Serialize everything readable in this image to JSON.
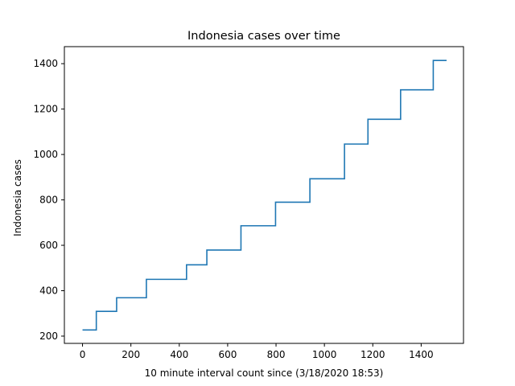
{
  "chart_data": {
    "type": "line",
    "title": "Indonesia cases over time",
    "xlabel": "10 minute interval count since (3/18/2020 18:53)",
    "ylabel": "Indonesia cases",
    "xlim": [
      -75,
      1575
    ],
    "ylim": [
      168,
      1475
    ],
    "xticks": [
      0,
      200,
      400,
      600,
      800,
      1000,
      1200,
      1400
    ],
    "yticks": [
      200,
      400,
      600,
      800,
      1000,
      1200,
      1400
    ],
    "grid": false,
    "legend": "none",
    "series": [
      {
        "color": "#1f77b4",
        "step": "post",
        "x": [
          0,
          57,
          141,
          264,
          430,
          514,
          655,
          798,
          940,
          1083,
          1180,
          1315,
          1450,
          1505
        ],
        "y": [
          227,
          309,
          369,
          450,
          514,
          579,
          686,
          790,
          893,
          1046,
          1155,
          1285,
          1414,
          1414
        ]
      }
    ]
  }
}
